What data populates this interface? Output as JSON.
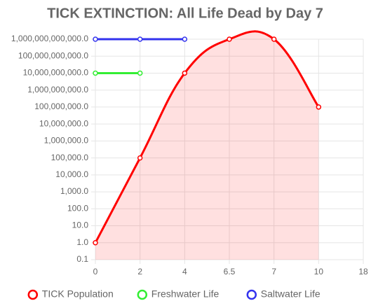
{
  "chart_data": {
    "type": "line",
    "title": "TICK EXTINCTION: All Life Dead by Day 7",
    "categories": [
      "0",
      "2",
      "4",
      "6.5",
      "7",
      "10",
      "18"
    ],
    "log_scale": true,
    "grid": true,
    "legend": "bottom",
    "ylim": [
      0.1,
      1000000000000
    ],
    "yticks": [
      0.1,
      {
        "value": 1,
        "label": "1.0"
      },
      {
        "value": 10,
        "label": "10.0"
      },
      {
        "value": 100,
        "label": "100.0"
      },
      {
        "value": 1000,
        "label": "1,000.0"
      },
      {
        "value": 10000,
        "label": "10,000.0"
      },
      {
        "value": 100000,
        "label": "100,000.0"
      },
      {
        "value": 1000000,
        "label": "1,000,000.0"
      },
      {
        "value": 10000000,
        "label": "10,000,000.0"
      },
      {
        "value": 100000000,
        "label": "100,000,000.0"
      },
      {
        "value": 1000000000,
        "label": "1,000,000,000.0"
      },
      {
        "value": 10000000000,
        "label": "10,000,000,000.0"
      },
      {
        "value": 100000000000,
        "label": "100,000,000,000.0"
      },
      {
        "value": 1000000000000,
        "label": "1,000,000,000,000.0"
      }
    ],
    "series": [
      {
        "name": "TICK Population",
        "color": "#ff0000",
        "fill": true,
        "values": [
          1,
          100000,
          10000000000,
          1000000000000,
          1000000000000,
          100000000,
          null
        ]
      },
      {
        "name": "Freshwater Life",
        "color": "#33ee33",
        "fill": false,
        "values": [
          10000000000,
          10000000000,
          null,
          null,
          null,
          null,
          null
        ]
      },
      {
        "name": "Saltwater Life",
        "color": "#3333ee",
        "fill": false,
        "values": [
          1000000000000,
          1000000000000,
          1000000000000,
          null,
          null,
          null,
          null
        ]
      }
    ]
  }
}
